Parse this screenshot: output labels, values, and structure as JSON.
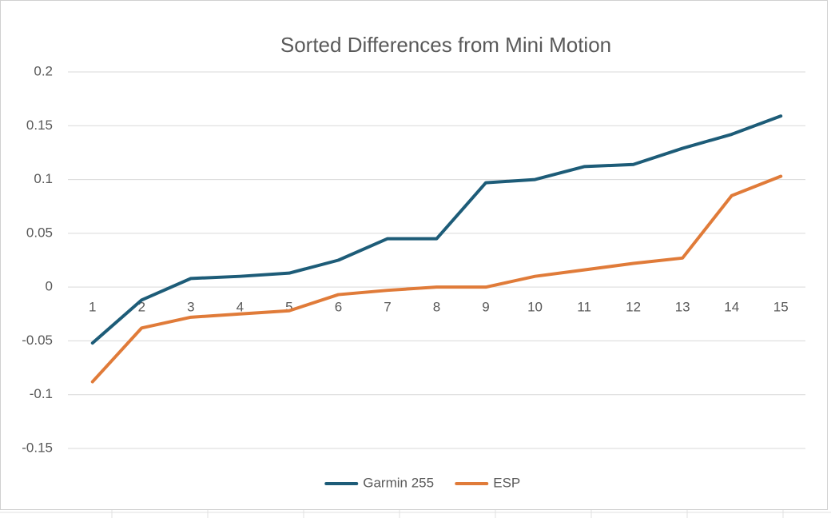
{
  "chart_data": {
    "type": "line",
    "title": "Sorted Differences from Mini Motion",
    "categories": [
      1,
      2,
      3,
      4,
      5,
      6,
      7,
      8,
      9,
      10,
      11,
      12,
      13,
      14,
      15
    ],
    "series": [
      {
        "name": "Garmin 255",
        "color": "#1d5c78",
        "values": [
          -0.052,
          -0.012,
          0.008,
          0.01,
          0.013,
          0.025,
          0.045,
          0.045,
          0.097,
          0.1,
          0.112,
          0.114,
          0.129,
          0.142,
          0.159
        ]
      },
      {
        "name": "ESP",
        "color": "#e07b39",
        "values": [
          -0.088,
          -0.038,
          -0.028,
          -0.025,
          -0.022,
          -0.007,
          -0.003,
          0,
          0,
          0.01,
          0.016,
          0.022,
          0.027,
          0.085,
          0.103
        ]
      }
    ],
    "ylim": [
      -0.15,
      0.2
    ],
    "yticks": [
      0.2,
      0.15,
      0.1,
      0.05,
      0,
      -0.05,
      -0.1,
      -0.15
    ],
    "grid": true,
    "legend": "bottom"
  }
}
